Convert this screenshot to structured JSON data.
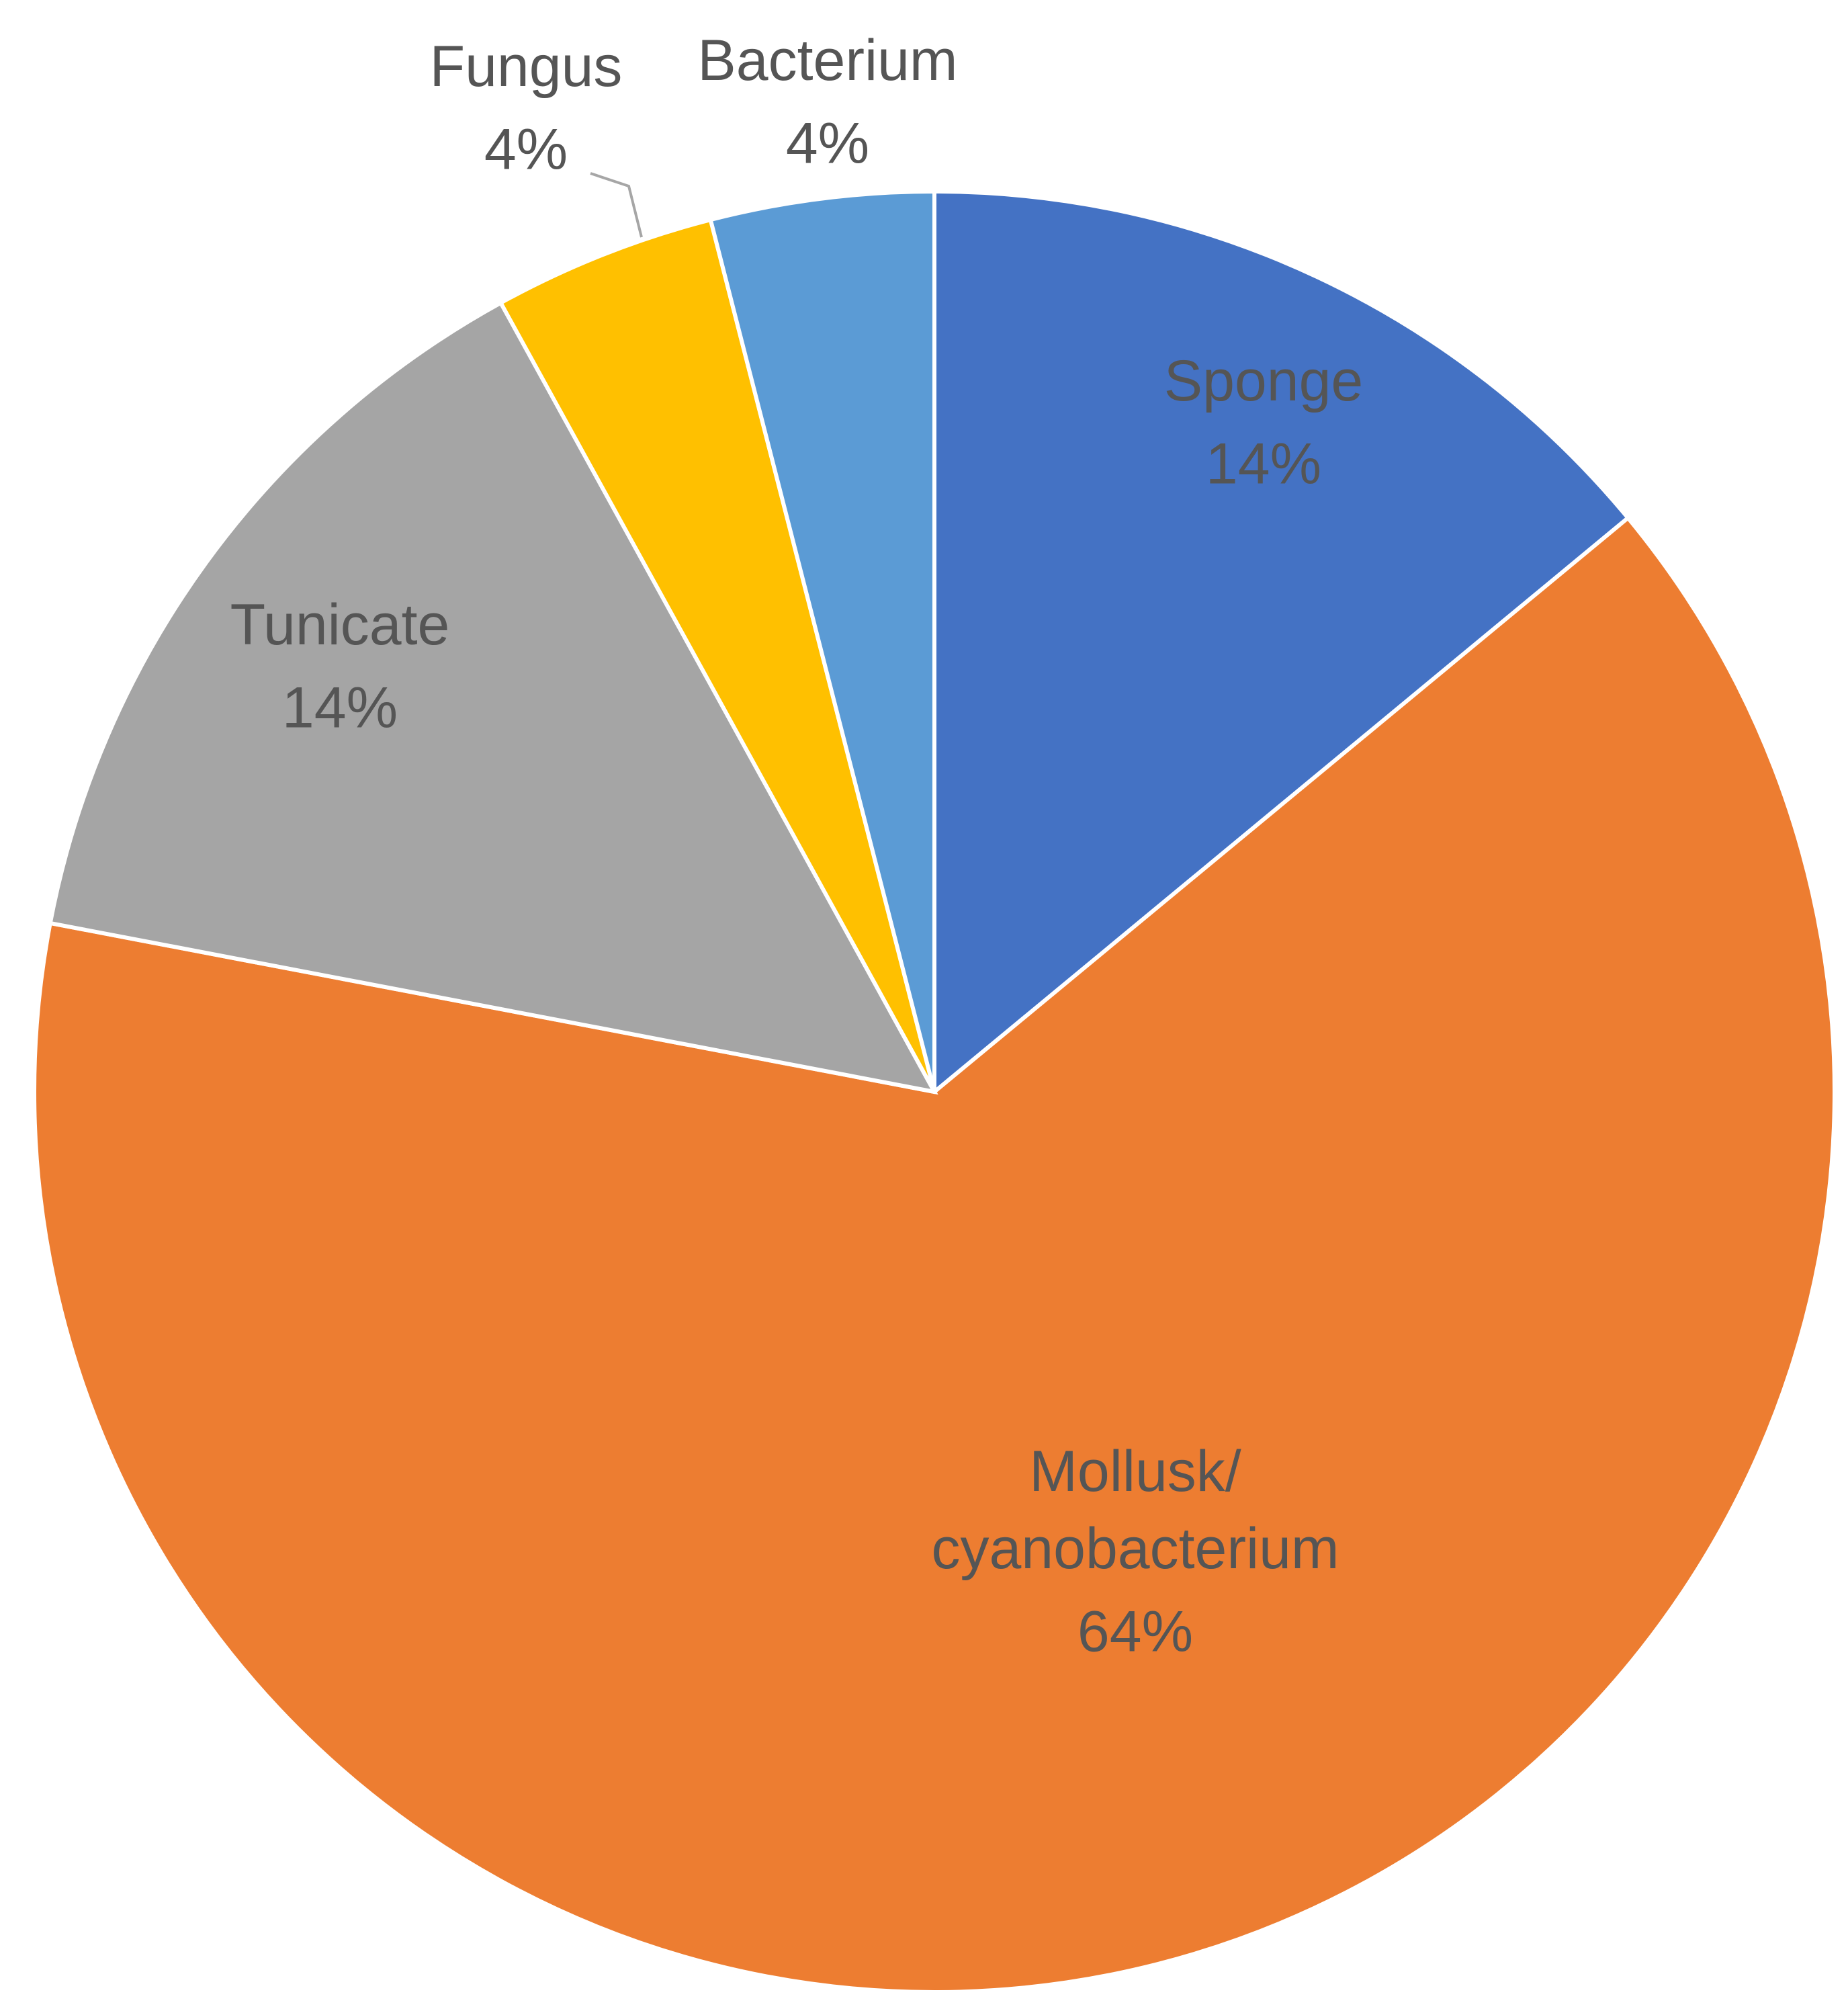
{
  "chart_data": {
    "type": "pie",
    "categories": [
      "Sponge",
      "Mollusk/cyanobacterium",
      "Tunicate",
      "Fungus",
      "Bacterium"
    ],
    "values": [
      14,
      64,
      14,
      4,
      4
    ],
    "value_labels": [
      "14%",
      "64%",
      "14%",
      "4%",
      "4%"
    ],
    "colors": [
      "#4472c4",
      "#ed7d31",
      "#a5a5a5",
      "#ffc000",
      "#5b9bd5"
    ]
  }
}
